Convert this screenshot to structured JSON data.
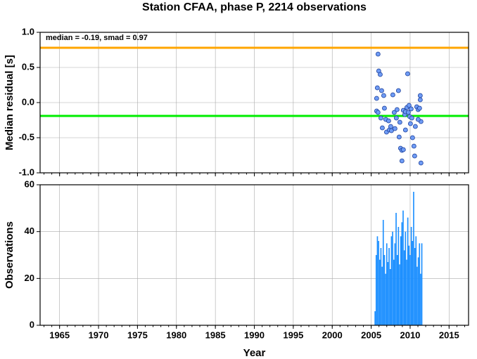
{
  "chart_data": [
    {
      "type": "scatter",
      "title": "Station CFAA, phase P, 2214 observations",
      "ylabel": "Median residual [s]",
      "annotation": "median = -0.19, smad = 0.97",
      "x": [
        2005.88,
        2005.97,
        2006.16,
        2005.79,
        2006.34,
        2005.7,
        2006.61,
        2005.7,
        2005.88,
        2006.25,
        2006.43,
        2006.7,
        2006.88,
        2006.97,
        2007.24,
        2007.33,
        2007.51,
        2007.6,
        2007.78,
        2007.96,
        2008.05,
        2008.23,
        2008.32,
        2008.5,
        2008.59,
        2008.68,
        2008.77,
        2008.95,
        2008.95,
        2009.13,
        2009.13,
        2009.31,
        2009.4,
        2009.58,
        2009.68,
        2009.77,
        2009.86,
        2009.95,
        2010.04,
        2010.13,
        2010.22,
        2010.31,
        2010.49,
        2010.58,
        2010.67,
        2010.85,
        2011.03,
        2011.21,
        2011.3,
        2011.3,
        2011.39,
        2011.39,
        2011.03,
        2009.4
      ],
      "values": [
        0.69,
        0.45,
        0.4,
        0.21,
        0.17,
        0.06,
        0.1,
        -0.12,
        -0.14,
        -0.22,
        -0.36,
        -0.08,
        -0.24,
        -0.42,
        -0.26,
        -0.39,
        -0.34,
        -0.4,
        0.11,
        -0.14,
        -0.37,
        -0.22,
        -0.1,
        0.17,
        -0.49,
        -0.28,
        -0.65,
        -0.68,
        -0.83,
        -0.67,
        -0.11,
        -0.17,
        -0.13,
        -0.07,
        0.41,
        -0.14,
        -0.04,
        -0.2,
        -0.3,
        -0.09,
        -0.22,
        -0.5,
        -0.62,
        -0.76,
        -0.34,
        -0.06,
        -0.1,
        -0.08,
        0.04,
        0.1,
        -0.27,
        -0.86,
        -0.24,
        -0.39
      ],
      "color": "#6f9cf5",
      "hlines": [
        {
          "value": 0.78,
          "color": "#ffa500"
        },
        {
          "value": -0.19,
          "color": "#00ee00"
        }
      ],
      "xlim": [
        1962.5,
        2017.5
      ],
      "xticks": [
        1965,
        1970,
        1975,
        1980,
        1985,
        1990,
        1995,
        2000,
        2005,
        2010,
        2015
      ],
      "ylim": [
        -1,
        1
      ],
      "yticks": [
        {
          "value": -1,
          "label": "-1.0"
        },
        -0.5,
        {
          "value": 0,
          "label": "0.0"
        },
        0.5,
        {
          "value": 1,
          "label": "1.0"
        }
      ],
      "grid": true
    },
    {
      "type": "bar",
      "ylabel": "Observations",
      "xlabel": "Year",
      "x": [
        2005.5,
        2005.65,
        2005.8,
        2005.95,
        2006.1,
        2006.25,
        2006.4,
        2006.55,
        2006.7,
        2006.85,
        2007.0,
        2007.15,
        2007.3,
        2007.45,
        2007.6,
        2007.75,
        2007.9,
        2008.05,
        2008.2,
        2008.35,
        2008.5,
        2008.65,
        2008.8,
        2008.95,
        2009.1,
        2009.25,
        2009.4,
        2009.55,
        2009.7,
        2009.85,
        2010.0,
        2010.15,
        2010.3,
        2010.45,
        2010.6,
        2010.75,
        2010.9,
        2011.05,
        2011.2,
        2011.35,
        2011.5
      ],
      "values": [
        6,
        30,
        38,
        36,
        28,
        33,
        25,
        45,
        30,
        22,
        35,
        27,
        33,
        24,
        38,
        40,
        28,
        35,
        48,
        30,
        42,
        26,
        38,
        44,
        49,
        32,
        40,
        28,
        46,
        34,
        30,
        42,
        36,
        57,
        33,
        38,
        25,
        29,
        35,
        22,
        35
      ],
      "color": "#1e90ff",
      "xlim": [
        1962.5,
        2017.5
      ],
      "xticks": [
        1965,
        1970,
        1975,
        1980,
        1985,
        1990,
        1995,
        2000,
        2005,
        2010,
        2015
      ],
      "ylim": [
        0,
        60
      ],
      "yticks": [
        0,
        20,
        40,
        60
      ],
      "grid": true
    }
  ]
}
